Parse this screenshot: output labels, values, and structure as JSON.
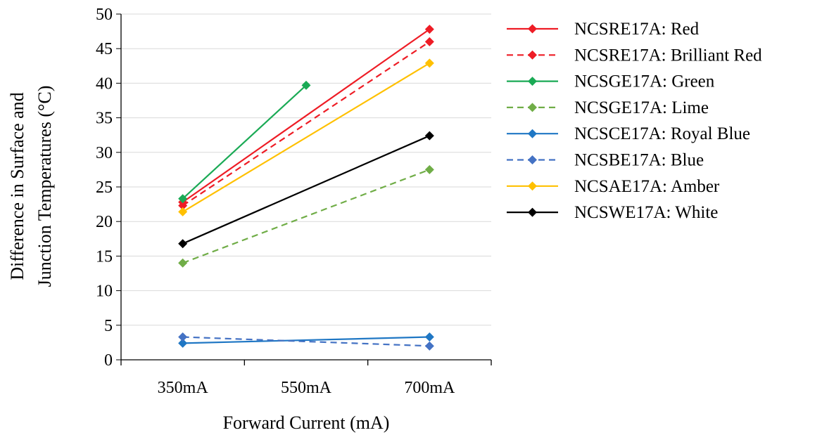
{
  "chart_data": {
    "type": "line",
    "title": "",
    "xlabel": "Forward Current (mA)",
    "ylabel_lines": [
      "Difference in Surface and",
      "Junction Temperatures (°C)"
    ],
    "categories": [
      "350mA",
      "550mA",
      "700mA"
    ],
    "ylim": [
      0,
      50
    ],
    "yticks": [
      0,
      5,
      10,
      15,
      20,
      25,
      30,
      35,
      40,
      45,
      50
    ],
    "grid": true,
    "legend_position": "right",
    "series": [
      {
        "name": "NCSRE17A: Red",
        "color": "#ee1c25",
        "dash": false,
        "values": [
          22.8,
          null,
          47.8
        ]
      },
      {
        "name": "NCSRE17A: Brilliant Red",
        "color": "#ee1c25",
        "dash": true,
        "values": [
          22.3,
          null,
          46.0
        ]
      },
      {
        "name": "NCSGE17A: Green",
        "color": "#1aaa55",
        "dash": false,
        "values": [
          23.3,
          39.7,
          null
        ]
      },
      {
        "name": "NCSGE17A: Lime",
        "color": "#70ad47",
        "dash": true,
        "values": [
          14.0,
          null,
          27.5
        ]
      },
      {
        "name": "NCSCE17A: Royal Blue",
        "color": "#1f77c4",
        "dash": false,
        "values": [
          2.4,
          null,
          3.3
        ]
      },
      {
        "name": "NCSBE17A: Blue",
        "color": "#4472c4",
        "dash": true,
        "values": [
          3.3,
          null,
          2.0
        ]
      },
      {
        "name": "NCSAE17A: Amber",
        "color": "#ffc000",
        "dash": false,
        "values": [
          21.4,
          null,
          42.9
        ]
      },
      {
        "name": "NCSWE17A: White",
        "color": "#000000",
        "dash": false,
        "values": [
          16.8,
          null,
          32.4
        ]
      }
    ]
  }
}
